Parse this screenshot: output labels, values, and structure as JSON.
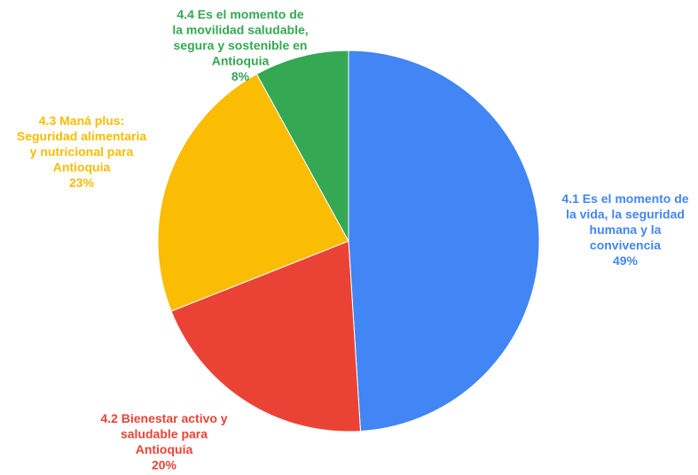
{
  "chart_data": {
    "type": "pie",
    "start_angle_deg": 0,
    "direction": "clockwise",
    "slices": [
      {
        "name": "4.1 Es el momento de la vida, la seguridad humana y la convivencia",
        "label_lines": [
          "4.1 Es el momento de",
          "la vida, la seguridad",
          "humana y la",
          "convivencia"
        ],
        "value": 49,
        "percent_label": "49%",
        "color": "#4285f4"
      },
      {
        "name": "4.2 Bienestar activo y saludable para Antioquia",
        "label_lines": [
          "4.2 Bienestar activo y",
          "saludable para",
          "Antioquia"
        ],
        "value": 20,
        "percent_label": "20%",
        "color": "#ea4335"
      },
      {
        "name": "4.3 Maná plus: Seguridad alimentaria y nutricional para Antioquia",
        "label_lines": [
          "4.3 Maná plus:",
          "Seguridad alimentaria",
          "y nutricional para",
          "Antioquia"
        ],
        "value": 23,
        "percent_label": "23%",
        "color": "#fbbc04"
      },
      {
        "name": "4.4 Es el momento de la movilidad saludable, segura y sostenible en Antioquia",
        "label_lines": [
          "4.4 Es el momento de",
          "la movilidad saludable,",
          "segura y sostenible en",
          "Antioquia"
        ],
        "value": 8,
        "percent_label": "8%",
        "color": "#34a853"
      }
    ]
  }
}
